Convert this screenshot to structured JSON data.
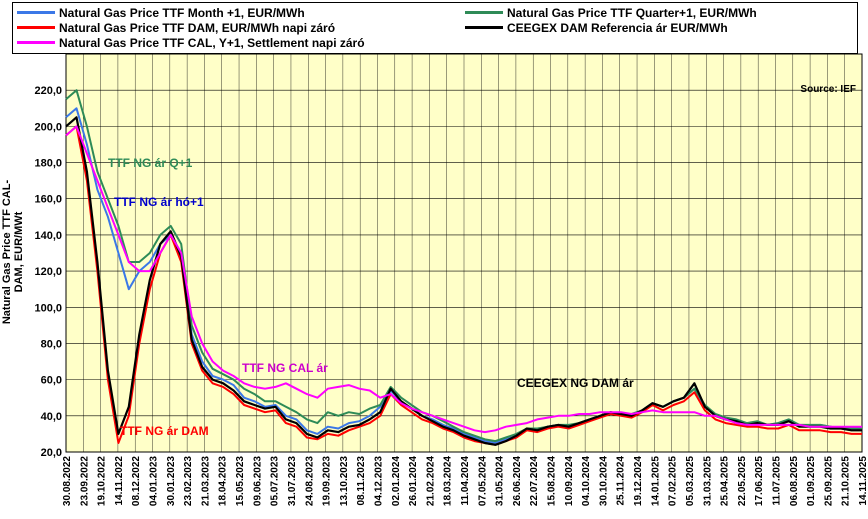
{
  "chart_data": {
    "type": "line",
    "title": "",
    "ylabel": "Natural Gas Price TTF CAL-DAM, EUR/MWt",
    "xlabel": "",
    "ylim": [
      20,
      230
    ],
    "yticks": [
      "20,0",
      "40,0",
      "60,0",
      "80,0",
      "100,0",
      "120,0",
      "140,0",
      "160,0",
      "180,0",
      "200,0",
      "220,0"
    ],
    "ytick_values": [
      20,
      40,
      60,
      80,
      100,
      120,
      140,
      160,
      180,
      200,
      220
    ],
    "xticks": [
      "30.08.2022",
      "23.09.2022",
      "19.10.2022",
      "14.11.2022",
      "08.12.2022",
      "04.01.2023",
      "30.01.2023",
      "23.02.2023",
      "21.03.2023",
      "18.04.2023",
      "15.05.2023",
      "09.06.2023",
      "05.07.2023",
      "31.07.2023",
      "24.08.2023",
      "19.09.2023",
      "13.10.2023",
      "08.11.2023",
      "04.12.2023",
      "02.01.2024",
      "26.01.2024",
      "21.02.2024",
      "18.03.2024",
      "11.04.2024",
      "07.05.2024",
      "31.05.2024",
      "26.06.2024",
      "22.07.2024",
      "15.08.2024",
      "10.09.2024",
      "04.10.2024",
      "30.10.2024",
      "25.11.2024",
      "19.12.2024",
      "14.01.2025",
      "07.02.2025",
      "05.03.2025",
      "31.03.2025",
      "25.04.2025",
      "22.05.2025",
      "17.06.2025",
      "11.07.2025",
      "06.08.2025",
      "01.09.2025",
      "25.09.2025",
      "21.10.2025",
      "14.11.2025"
    ],
    "source": "Source: IEF",
    "series": [
      {
        "name": "Natural Gas Price TTF Month +1, EUR/MWh",
        "color": "#3b78e7",
        "values": [
          205,
          210,
          190,
          165,
          150,
          130,
          110,
          120,
          125,
          135,
          140,
          130,
          85,
          70,
          62,
          60,
          57,
          50,
          48,
          45,
          46,
          40,
          38,
          32,
          30,
          34,
          33,
          36,
          37,
          40,
          45,
          54,
          48,
          44,
          40,
          38,
          35,
          33,
          30,
          28,
          26,
          25,
          27,
          29,
          33,
          32,
          34,
          35,
          34,
          36,
          38,
          40,
          42,
          41,
          40,
          43,
          47,
          45,
          48,
          50,
          55,
          45,
          40,
          38,
          37,
          35,
          36,
          35,
          36,
          38,
          35,
          34,
          35,
          34,
          33,
          32,
          32
        ]
      },
      {
        "name": "Natural Gas Price TTF Quarter+1, EUR/MWh",
        "color": "#2e8b57",
        "values": [
          215,
          220,
          200,
          175,
          160,
          145,
          125,
          125,
          130,
          140,
          145,
          135,
          90,
          75,
          66,
          63,
          60,
          55,
          52,
          48,
          48,
          45,
          42,
          38,
          36,
          42,
          40,
          42,
          41,
          44,
          46,
          56,
          50,
          46,
          42,
          40,
          37,
          34,
          31,
          29,
          27,
          26,
          28,
          30,
          33,
          33,
          34,
          35,
          35,
          36,
          38,
          40,
          42,
          41,
          41,
          43,
          47,
          45,
          48,
          50,
          55,
          46,
          41,
          39,
          38,
          36,
          37,
          35,
          36,
          38,
          35,
          35,
          35,
          34,
          33,
          33,
          33
        ]
      },
      {
        "name": "Natural Gas Price TTF DAM, EUR/MWh napi záró",
        "color": "#ff0000",
        "values": [
          195,
          200,
          170,
          120,
          60,
          25,
          40,
          80,
          110,
          130,
          140,
          125,
          80,
          65,
          58,
          56,
          52,
          46,
          44,
          42,
          43,
          36,
          34,
          28,
          27,
          30,
          29,
          32,
          34,
          36,
          40,
          52,
          46,
          42,
          38,
          36,
          33,
          31,
          28,
          26,
          25,
          24,
          26,
          28,
          32,
          31,
          33,
          34,
          33,
          35,
          37,
          39,
          41,
          40,
          39,
          42,
          46,
          43,
          46,
          48,
          53,
          43,
          38,
          36,
          35,
          34,
          34,
          33,
          33,
          35,
          32,
          32,
          32,
          31,
          31,
          30,
          30
        ]
      },
      {
        "name": "CEEGEX DAM Referencia ár  EUR/MWh",
        "color": "#000000",
        "values": [
          200,
          205,
          175,
          125,
          65,
          30,
          45,
          85,
          115,
          135,
          142,
          128,
          82,
          67,
          60,
          58,
          54,
          48,
          46,
          44,
          45,
          38,
          36,
          30,
          28,
          32,
          31,
          34,
          35,
          38,
          42,
          55,
          48,
          44,
          40,
          37,
          34,
          32,
          29,
          27,
          25,
          24,
          26,
          29,
          33,
          32,
          34,
          35,
          34,
          36,
          38,
          40,
          42,
          41,
          40,
          43,
          47,
          45,
          48,
          50,
          58,
          45,
          40,
          38,
          37,
          35,
          36,
          35,
          35,
          37,
          34,
          34,
          34,
          33,
          33,
          32,
          32
        ]
      },
      {
        "name": "Natural Gas Price TTF CAL, Y+1, Settlement napi záró",
        "color": "#ff00ff",
        "values": [
          195,
          200,
          185,
          170,
          155,
          140,
          125,
          120,
          120,
          130,
          140,
          130,
          95,
          80,
          70,
          65,
          62,
          58,
          56,
          55,
          56,
          58,
          55,
          52,
          50,
          55,
          56,
          57,
          55,
          54,
          50,
          52,
          47,
          44,
          42,
          40,
          38,
          36,
          34,
          32,
          31,
          32,
          34,
          35,
          36,
          38,
          39,
          40,
          40,
          41,
          41,
          42,
          42,
          42,
          41,
          42,
          43,
          42,
          42,
          42,
          42,
          40,
          40,
          38,
          36,
          35,
          35,
          35,
          35,
          35,
          35,
          34,
          34,
          34,
          34,
          34,
          34
        ]
      }
    ],
    "annotations": [
      {
        "text": "TTF NG ár Q+1",
        "color": "#2e8b57"
      },
      {
        "text": "TTF NG ár hó+1",
        "color": "#0000cc"
      },
      {
        "text": "TTF NG CAL ár",
        "color": "#cc00cc"
      },
      {
        "text": "CEEGEX NG DAM ár",
        "color": "#000000"
      },
      {
        "text": "TTF NG ár DAM",
        "color": "#ff0000"
      }
    ]
  }
}
